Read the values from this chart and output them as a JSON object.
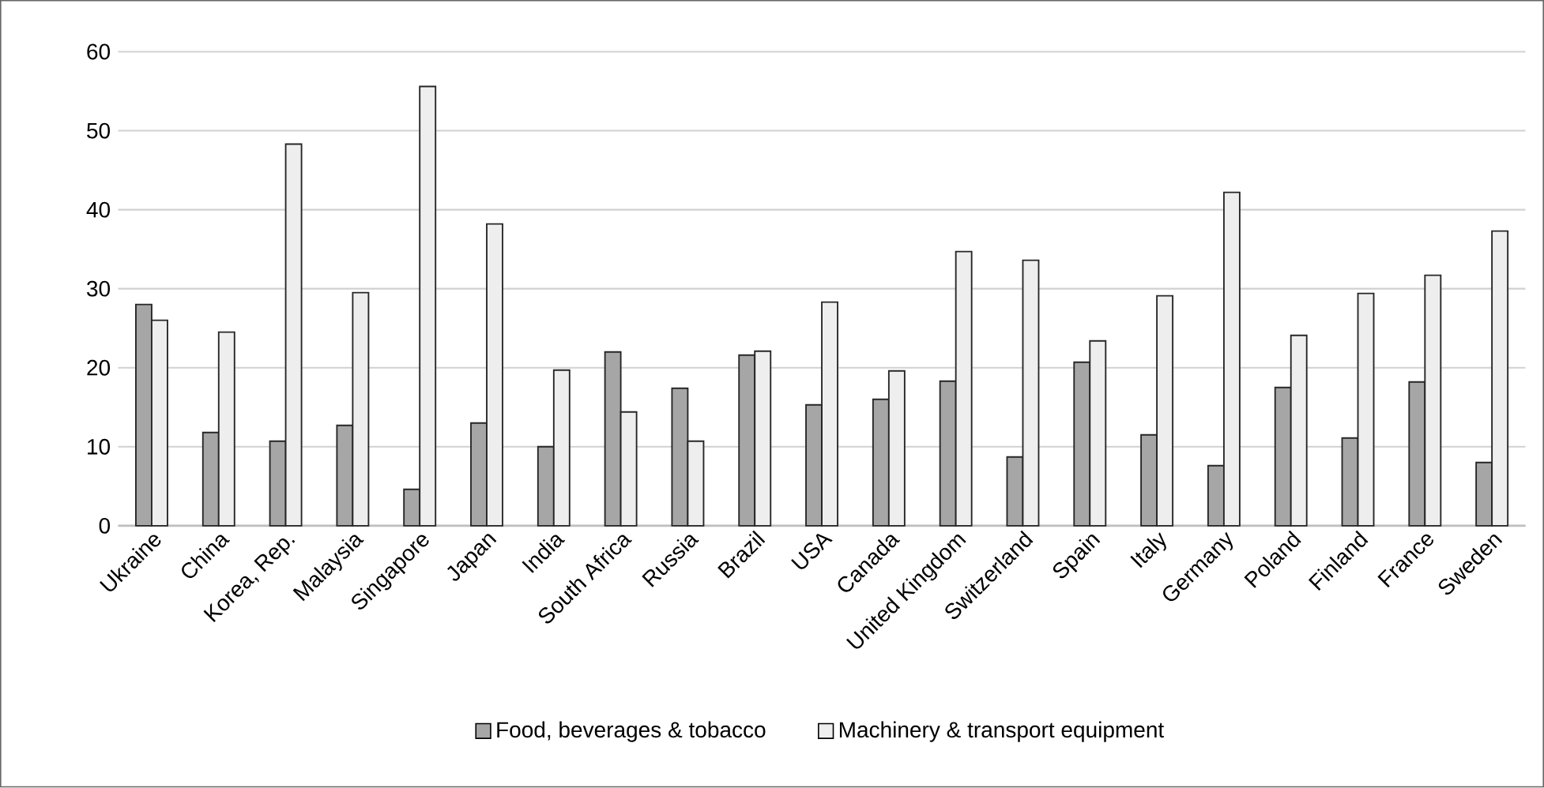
{
  "chart_data": {
    "type": "bar",
    "categories": [
      "Ukraine",
      "China",
      "Korea, Rep.",
      "Malaysia",
      "Singapore",
      "Japan",
      "India",
      "South Africa",
      "Russia",
      "Brazil",
      "USA",
      "Canada",
      "United Kingdom",
      "Switzerland",
      "Spain",
      "Italy",
      "Germany",
      "Poland",
      "Finland",
      "France",
      "Sweden"
    ],
    "series": [
      {
        "name": "Food, beverages & tobacco",
        "color": "#a6a6a6",
        "values": [
          28,
          11.8,
          10.7,
          12.7,
          4.6,
          13,
          10,
          22,
          17.4,
          21.6,
          15.3,
          16,
          18.3,
          8.7,
          20.7,
          11.5,
          7.6,
          17.5,
          11.1,
          18.2,
          8
        ]
      },
      {
        "name": "Machinery & transport equipment",
        "color": "#eeeeee",
        "values": [
          26,
          24.5,
          48.3,
          29.5,
          55.6,
          38.2,
          19.7,
          14.4,
          10.7,
          22.1,
          28.3,
          19.6,
          34.7,
          33.6,
          23.4,
          29.1,
          42.2,
          24.1,
          29.4,
          31.7,
          37.3
        ]
      }
    ],
    "ylim": [
      0,
      60
    ],
    "yticks": [
      0,
      10,
      20,
      30,
      40,
      50,
      60
    ],
    "grid": "y",
    "legend": "bottom"
  }
}
